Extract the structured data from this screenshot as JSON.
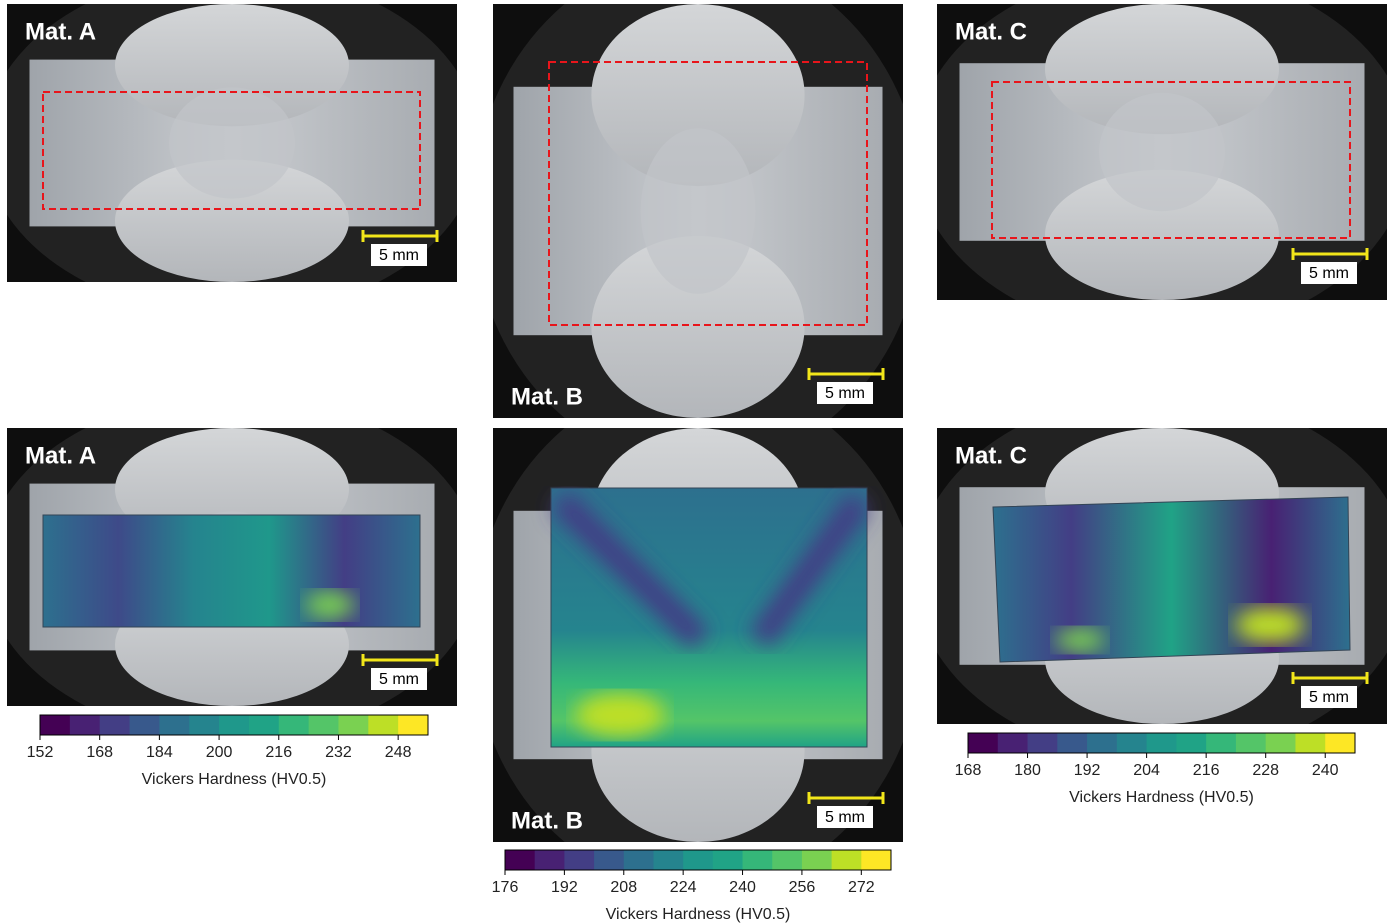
{
  "panels": [
    {
      "label": "Mat. A",
      "scale_bar": "5 mm"
    },
    {
      "label": "Mat. B",
      "scale_bar": "5 mm"
    },
    {
      "label": "Mat. C",
      "scale_bar": "5 mm"
    },
    {
      "label": "Mat. A",
      "scale_bar": "5 mm"
    },
    {
      "label": "Mat. B",
      "scale_bar": "5 mm"
    },
    {
      "label": "Mat. C",
      "scale_bar": "5 mm"
    }
  ],
  "colorbars": [
    {
      "title": "Vickers Hardness (HV0.5)",
      "range": [
        152,
        256
      ],
      "ticks": [
        152,
        168,
        184,
        200,
        216,
        232,
        248
      ],
      "colors": [
        "#440154",
        "#482173",
        "#433e85",
        "#38598c",
        "#2d708e",
        "#25848e",
        "#1f988b",
        "#20a386",
        "#35b779",
        "#54c568",
        "#7ad151",
        "#bddf26",
        "#fde725"
      ]
    },
    {
      "title": "Vickers Hardness (HV0.5)",
      "range": [
        176,
        280
      ],
      "ticks": [
        176,
        192,
        208,
        224,
        240,
        256,
        272
      ],
      "colors": [
        "#440154",
        "#482173",
        "#433e85",
        "#38598c",
        "#2d708e",
        "#25848e",
        "#1f988b",
        "#20a386",
        "#35b779",
        "#54c568",
        "#7ad151",
        "#bddf26",
        "#fde725"
      ]
    },
    {
      "title": "Vickers Hardness (HV0.5)",
      "range": [
        168,
        246
      ],
      "ticks": [
        168,
        180,
        192,
        204,
        216,
        228,
        240
      ],
      "colors": [
        "#440154",
        "#482173",
        "#433e85",
        "#38598c",
        "#2d708e",
        "#25848e",
        "#1f988b",
        "#20a386",
        "#35b779",
        "#54c568",
        "#7ad151",
        "#bddf26",
        "#fde725"
      ]
    }
  ]
}
